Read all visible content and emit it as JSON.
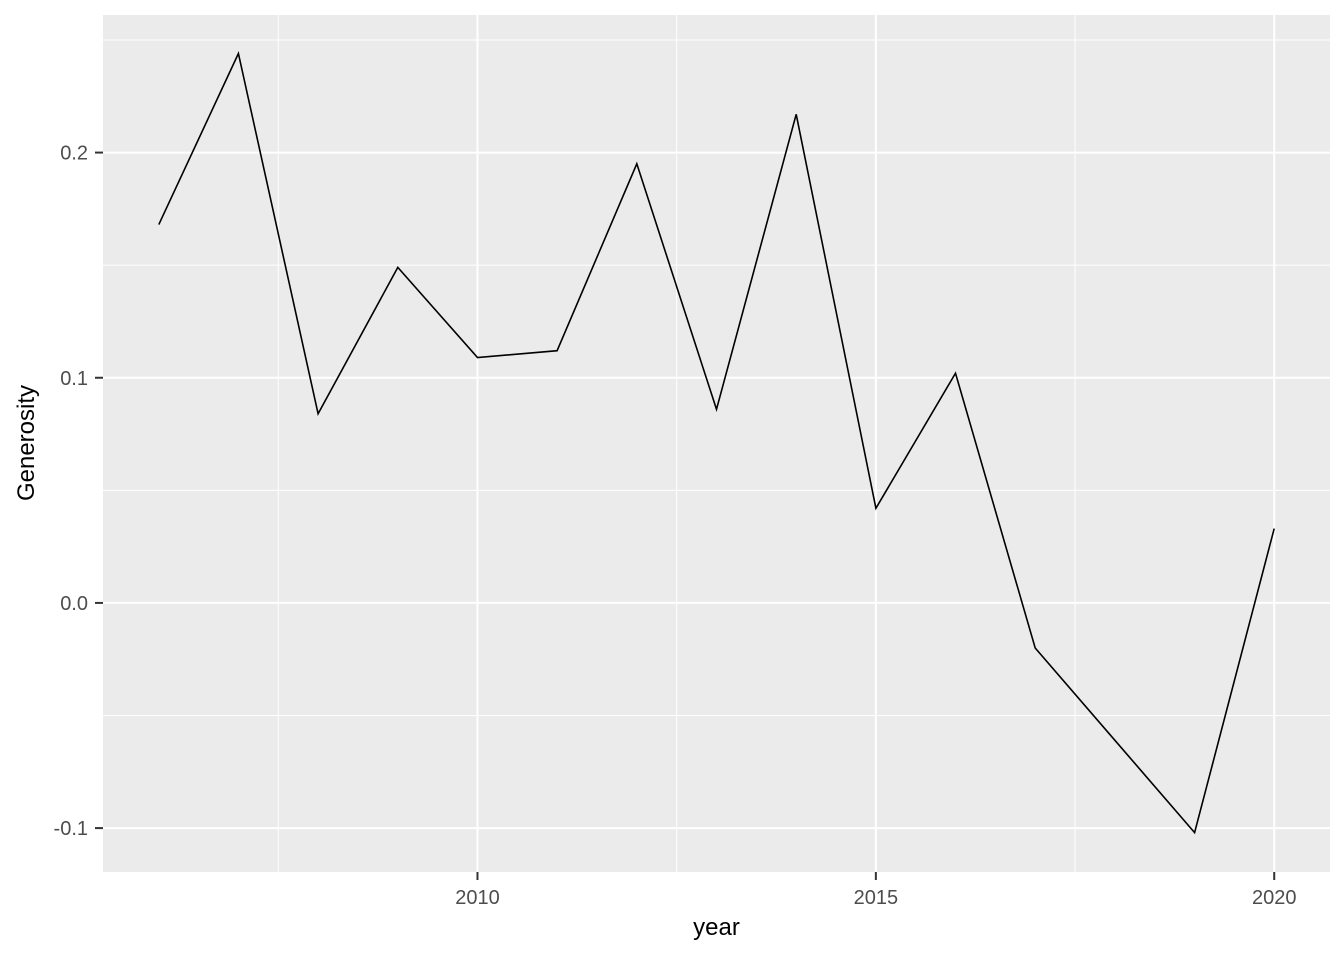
{
  "chart_data": {
    "type": "line",
    "title": "",
    "xlabel": "year",
    "ylabel": "Generosity",
    "x": [
      2006,
      2007,
      2008,
      2009,
      2010,
      2011,
      2012,
      2013,
      2014,
      2015,
      2016,
      2017,
      2018,
      2019,
      2020
    ],
    "values": [
      0.168,
      0.244,
      0.084,
      0.149,
      0.109,
      0.112,
      0.195,
      0.086,
      0.217,
      0.042,
      0.102,
      -0.02,
      -0.061,
      -0.102,
      0.033
    ],
    "xlim": [
      2005.3,
      2020.7
    ],
    "ylim": [
      -0.1195,
      0.2611
    ],
    "x_major_ticks": [
      {
        "value": 2010,
        "label": "2010"
      },
      {
        "value": 2015,
        "label": "2015"
      },
      {
        "value": 2020,
        "label": "2020"
      }
    ],
    "x_minor_ticks": [
      2007.5,
      2012.5,
      2017.5
    ],
    "y_major_ticks": [
      {
        "value": 0.2,
        "label": "0.2"
      },
      {
        "value": 0.1,
        "label": "0.1"
      },
      {
        "value": 0.0,
        "label": "0.0"
      },
      {
        "value": -0.1,
        "label": "-0.1"
      }
    ],
    "y_minor_ticks": [
      0.25,
      0.15,
      0.05,
      -0.05
    ],
    "grid": true,
    "legend": "none",
    "colors": {
      "panel_background": "#EBEBEB",
      "gridline": "#FFFFFF",
      "line": "#000000",
      "tick_label": "#4D4D4D",
      "tick_mark": "#333333",
      "axis_title": "#000000"
    }
  }
}
